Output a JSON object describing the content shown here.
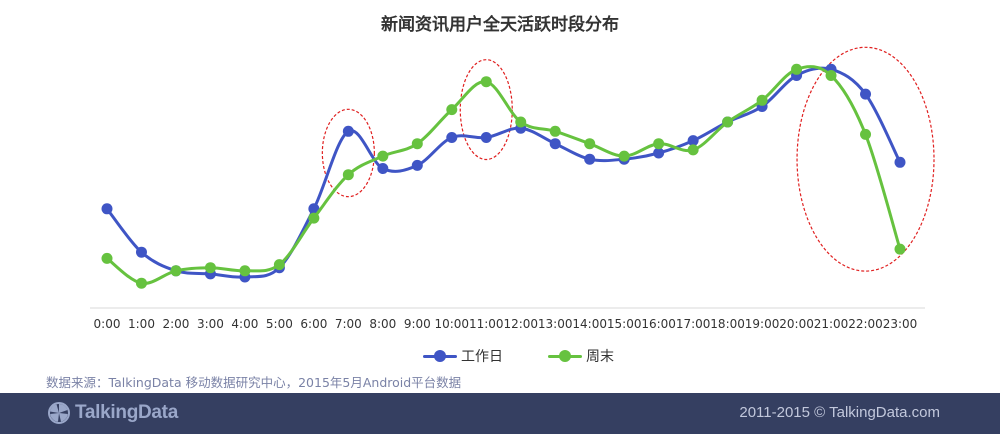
{
  "colors": {
    "workday": "#3f55c5",
    "weekend": "#66c23f",
    "highlight": "#e02020",
    "footer_bg": "#353f61"
  },
  "chart_data": {
    "type": "line",
    "title": "新闻资讯用户全天活跃时段分布",
    "xlabel": "",
    "ylabel": "",
    "y_axis_visible": false,
    "grid": false,
    "smooth": true,
    "legend_position": "bottom",
    "categories": [
      "0:00",
      "1:00",
      "2:00",
      "3:00",
      "4:00",
      "5:00",
      "6:00",
      "7:00",
      "8:00",
      "9:00",
      "10:00",
      "11:00",
      "12:00",
      "13:00",
      "14:00",
      "15:00",
      "16:00",
      "17:00",
      "18:00",
      "19:00",
      "20:00",
      "21:00",
      "22:00",
      "23:00"
    ],
    "series": [
      {
        "name": "工作日",
        "color": "#3f55c5",
        "values": [
          32,
          18,
          12,
          11,
          10,
          13,
          32,
          57,
          45,
          46,
          55,
          55,
          58,
          53,
          48,
          48,
          50,
          54,
          60,
          65,
          75,
          77,
          69,
          47
        ]
      },
      {
        "name": "周末",
        "color": "#66c23f",
        "values": [
          16,
          8,
          12,
          13,
          12,
          14,
          29,
          43,
          49,
          53,
          64,
          73,
          60,
          57,
          53,
          49,
          53,
          51,
          60,
          67,
          77,
          75,
          56,
          19
        ]
      }
    ],
    "highlights": [
      {
        "from": "7:00",
        "to": "7:00"
      },
      {
        "from": "11:00",
        "to": "11:00"
      },
      {
        "from": "21:00",
        "to": "23:00"
      }
    ]
  },
  "footer": {
    "source": "数据来源：TalkingData 移动数据研究中心，2015年5月Android平台数据",
    "logo_text": "TalkingData",
    "copyright": "2011-2015 © TalkingData.com"
  }
}
